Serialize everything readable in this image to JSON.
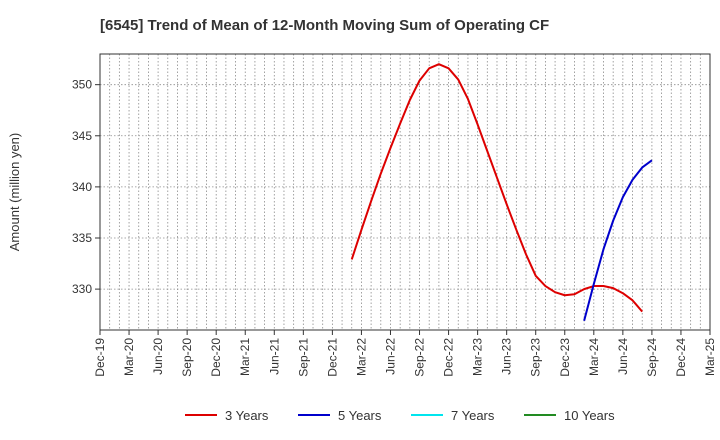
{
  "chart_data": {
    "type": "line",
    "title": "[6545]  Trend of Mean of 12-Month Moving Sum of Operating CF",
    "xlabel": "",
    "ylabel": "Amount (million yen)",
    "ylim": [
      326,
      353
    ],
    "yticks": [
      330,
      335,
      340,
      345,
      350
    ],
    "x_range": [
      "Dec-19",
      "Mar-25"
    ],
    "x_ticks": [
      "Dec-19",
      "Mar-20",
      "Jun-20",
      "Sep-20",
      "Dec-20",
      "Mar-21",
      "Jun-21",
      "Sep-21",
      "Dec-21",
      "Mar-22",
      "Jun-22",
      "Sep-22",
      "Dec-22",
      "Mar-23",
      "Jun-23",
      "Sep-23",
      "Dec-23",
      "Mar-24",
      "Jun-24",
      "Sep-24",
      "Dec-24",
      "Mar-25"
    ],
    "grid": true,
    "legend_position": "bottom",
    "series": [
      {
        "name": "3 Years",
        "color": "#dd0000",
        "start": "Feb-22",
        "values": [
          332.9,
          335.8,
          338.6,
          341.3,
          343.8,
          346.2,
          348.5,
          350.4,
          351.6,
          352.0,
          351.6,
          350.5,
          348.6,
          346.1,
          343.5,
          340.9,
          338.3,
          335.8,
          333.4,
          331.3,
          330.3,
          329.7,
          329.4,
          329.5,
          330.0,
          330.3,
          330.3,
          330.1,
          329.6,
          328.9,
          327.8
        ]
      },
      {
        "name": "5 Years",
        "color": "#0000cc",
        "start": "Feb-24",
        "values": [
          326.9,
          330.5,
          333.9,
          336.7,
          339.0,
          340.7,
          341.9,
          342.6
        ]
      },
      {
        "name": "7 Years",
        "color": "#00e5ee",
        "start": null,
        "values": []
      },
      {
        "name": "10 Years",
        "color": "#228b22",
        "start": null,
        "values": []
      }
    ]
  }
}
